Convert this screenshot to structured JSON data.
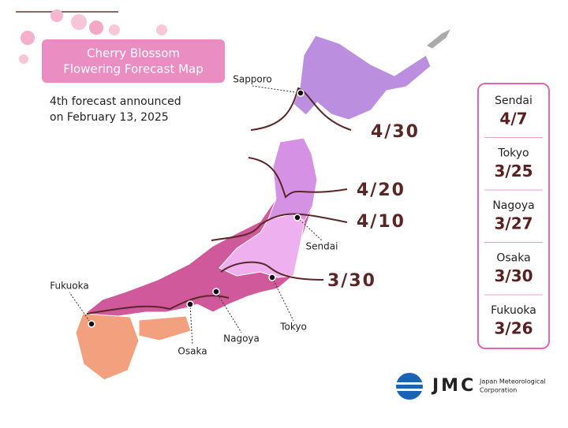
{
  "title": [
    "Cherry Blossom",
    "Flowering Forecast Map"
  ],
  "subtitle": [
    "4th forecast announced",
    "on February 13, 2025"
  ],
  "isolines": [
    "4/30",
    "4/20",
    "4/10",
    "3/30"
  ],
  "cities": [
    "Sapporo",
    "Sendai",
    "Fukuoka",
    "Osaka",
    "Nagoya",
    "Tokyo"
  ],
  "forecast": [
    {
      "city": "Sendai",
      "date": "4/7"
    },
    {
      "city": "Tokyo",
      "date": "3/25"
    },
    {
      "city": "Nagoya",
      "date": "3/27"
    },
    {
      "city": "Osaka",
      "date": "3/30"
    },
    {
      "city": "Fukuoka",
      "date": "3/26"
    }
  ],
  "logo": {
    "mark": "JMC",
    "name": [
      "Japan Meteorological",
      "Corporation"
    ]
  }
}
